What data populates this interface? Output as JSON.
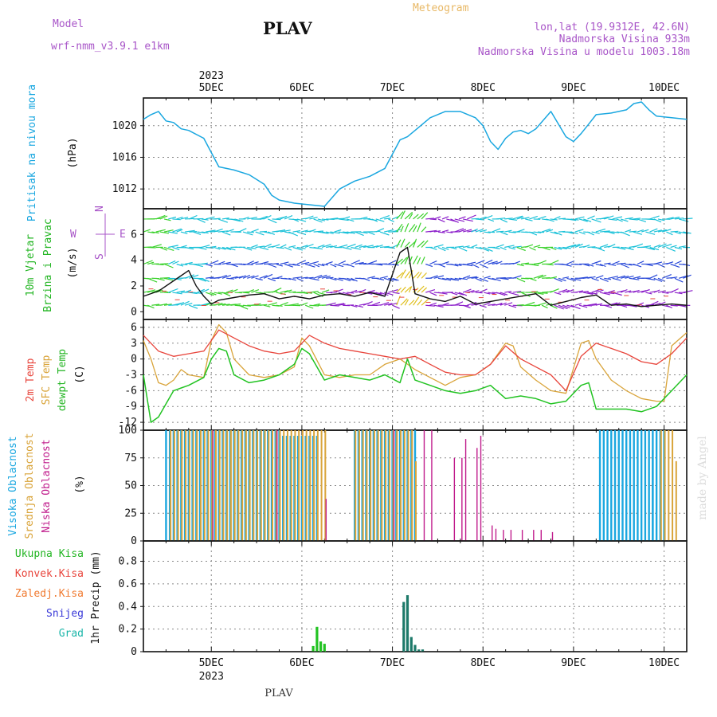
{
  "header": {
    "model_label": "Model",
    "model_name": "wrf-nmm_v3.9.1 e1km",
    "station_title": "PLAV",
    "meteogram_label": "Meteogram",
    "location": "lon,lat (19.9312E, 42.6N)",
    "altitude": "Nadmorska Visina 933m",
    "model_altitude": "Nadmorska Visina u modelu 1003.18m",
    "footer_station": "PLAV",
    "credit": "made by Angel"
  },
  "time_axis": {
    "year": "2023",
    "days": [
      "5DEC",
      "6DEC",
      "7DEC",
      "8DEC",
      "9DEC",
      "10DEC"
    ],
    "start_hour": 0,
    "end_hour": 144
  },
  "colors": {
    "pressure": "#1aa7e0",
    "temp2m": "#e8453c",
    "sfc": "#d9a43a",
    "dewpt": "#22c322",
    "high_cloud": "#1aa7e0",
    "mid_cloud": "#d9a43a",
    "low_cloud": "#c01c8c",
    "precip": "#22c322",
    "precip_dark": "#1d7a6a",
    "wind_speed": "#111111",
    "wind_purple": "#8a1cc9",
    "wind_cyan": "#19c1d8",
    "wind_green": "#39d12a",
    "wind_blue": "#2a4ad8"
  },
  "chart_data": [
    {
      "type": "line",
      "panel": "pressure",
      "ylabel_main": "Pritisak na nivou mora",
      "ylabel_unit": "(hPa)",
      "yticks": [
        1012,
        1016,
        1020
      ],
      "ylim": [
        1009.5,
        1023.5
      ],
      "series": [
        {
          "x": [
            0,
            2,
            4,
            6,
            8,
            10,
            12,
            16,
            20,
            24,
            28,
            32,
            34,
            36,
            40,
            44,
            48,
            52,
            56,
            60,
            64,
            66,
            68,
            70,
            72,
            76,
            80,
            84,
            88,
            90,
            92,
            94,
            96,
            98,
            100,
            102,
            104,
            108,
            112,
            114,
            116,
            118,
            120,
            124,
            128,
            130,
            132,
            134,
            136,
            140,
            144
          ],
          "values": [
            1020.8,
            1021.4,
            1021.8,
            1020.6,
            1020.4,
            1019.6,
            1019.4,
            1018.4,
            1014.8,
            1014.4,
            1013.8,
            1012.6,
            1011.2,
            1010.6,
            1010.2,
            1010.0,
            1009.8,
            1012.0,
            1013.0,
            1013.6,
            1014.6,
            1016.4,
            1018.2,
            1018.6,
            1019.4,
            1021.0,
            1021.8,
            1021.8,
            1021.0,
            1020.0,
            1018.0,
            1017.0,
            1018.4,
            1019.2,
            1019.4,
            1019.0,
            1019.6,
            1021.8,
            1018.6,
            1018.0,
            1019.0,
            1020.2,
            1021.4,
            1021.6,
            1022.0,
            1022.8,
            1023.0,
            1022.0,
            1021.2,
            1021.0,
            1020.8
          ]
        }
      ]
    },
    {
      "type": "line",
      "panel": "wind",
      "ylabel_main": "10m Vjetar",
      "ylabel_sub": "Brzina i Pravac",
      "ylabel_unit": "(m/s)",
      "compass": [
        "W",
        "E",
        "N",
        "S"
      ],
      "yticks": [
        0,
        2,
        4,
        6
      ],
      "ylim": [
        -0.6,
        8.0
      ],
      "series": [
        {
          "name": "wind speed",
          "x": [
            0,
            4,
            8,
            12,
            14,
            16,
            18,
            20,
            24,
            28,
            32,
            36,
            40,
            44,
            48,
            52,
            56,
            60,
            64,
            68,
            70,
            72,
            76,
            80,
            84,
            88,
            92,
            96,
            100,
            104,
            108,
            112,
            116,
            120,
            124,
            128,
            132,
            136,
            140,
            144
          ],
          "values": [
            1.2,
            1.6,
            2.4,
            3.2,
            2.0,
            1.2,
            0.6,
            0.9,
            1.1,
            1.3,
            1.4,
            1.0,
            1.2,
            1.0,
            1.3,
            1.4,
            1.2,
            1.5,
            1.2,
            4.6,
            5.0,
            1.4,
            1.0,
            0.8,
            1.2,
            0.6,
            0.8,
            1.0,
            1.2,
            1.4,
            0.5,
            0.8,
            1.1,
            1.3,
            0.5,
            0.6,
            0.4,
            0.5,
            0.6,
            0.5
          ]
        }
      ]
    },
    {
      "type": "line",
      "panel": "temperature",
      "ylabel_lines": [
        "2m Temp",
        "SFC Temp",
        "dewpt Temp"
      ],
      "ylabel_unit": "(C)",
      "yticks": [
        -12,
        -9,
        -6,
        -3,
        0,
        3,
        6
      ],
      "ylim": [
        -13.5,
        7.5
      ],
      "series": [
        {
          "name": "2m Temp",
          "x": [
            0,
            4,
            8,
            12,
            16,
            20,
            24,
            28,
            32,
            36,
            40,
            44,
            48,
            52,
            56,
            60,
            64,
            68,
            72,
            76,
            80,
            84,
            88,
            92,
            96,
            100,
            104,
            108,
            112,
            116,
            120,
            124,
            128,
            132,
            136,
            140,
            144
          ],
          "values": [
            4.5,
            1.5,
            0.5,
            1.0,
            1.5,
            5.5,
            4.0,
            2.5,
            1.5,
            1.0,
            1.5,
            4.5,
            3.0,
            2.0,
            1.5,
            1.0,
            0.5,
            0.0,
            0.5,
            -1.0,
            -2.5,
            -3.0,
            -3.0,
            -1.0,
            2.5,
            0.0,
            -1.5,
            -3.0,
            -6.0,
            0.5,
            3.0,
            2.0,
            1.0,
            -0.5,
            -1.0,
            1.0,
            4.0
          ]
        },
        {
          "name": "SFC Temp",
          "x": [
            0,
            2,
            4,
            6,
            8,
            10,
            12,
            16,
            18,
            20,
            22,
            24,
            28,
            32,
            36,
            40,
            42,
            44,
            48,
            52,
            56,
            60,
            64,
            68,
            72,
            76,
            80,
            84,
            88,
            92,
            96,
            98,
            100,
            104,
            108,
            112,
            116,
            118,
            120,
            124,
            128,
            132,
            136,
            138,
            140,
            144
          ],
          "values": [
            3.5,
            0.0,
            -4.5,
            -5.0,
            -4.0,
            -2.0,
            -3.0,
            -3.5,
            3.5,
            6.5,
            5.0,
            0.0,
            -3.0,
            -3.5,
            -3.0,
            -1.5,
            4.0,
            2.5,
            -3.0,
            -3.5,
            -3.0,
            -3.0,
            -1.0,
            0.0,
            -2.0,
            -3.5,
            -5.0,
            -3.5,
            -3.0,
            -1.0,
            3.0,
            2.5,
            -1.5,
            -4.0,
            -6.0,
            -6.5,
            3.0,
            3.5,
            0.0,
            -4.0,
            -6.0,
            -7.5,
            -8.0,
            -8.0,
            2.5,
            5.0
          ]
        },
        {
          "name": "dewpt Temp",
          "x": [
            0,
            2,
            4,
            6,
            8,
            10,
            12,
            16,
            18,
            20,
            22,
            24,
            28,
            32,
            36,
            40,
            42,
            44,
            48,
            52,
            56,
            60,
            64,
            68,
            70,
            72,
            76,
            80,
            84,
            88,
            92,
            96,
            100,
            104,
            108,
            112,
            116,
            118,
            120,
            124,
            128,
            132,
            136,
            140,
            144
          ],
          "values": [
            -3.0,
            -12.0,
            -11.0,
            -8.5,
            -6.0,
            -5.5,
            -5.0,
            -3.5,
            0.0,
            2.0,
            1.5,
            -3.0,
            -4.5,
            -4.0,
            -3.0,
            -1.0,
            2.0,
            1.0,
            -4.0,
            -3.0,
            -3.5,
            -4.0,
            -3.0,
            -4.5,
            0.0,
            -4.0,
            -5.0,
            -6.0,
            -6.5,
            -6.0,
            -5.0,
            -7.5,
            -7.0,
            -7.5,
            -8.5,
            -8.0,
            -5.0,
            -4.5,
            -9.5,
            -9.5,
            -9.5,
            -10.0,
            -9.0,
            -6.0,
            -3.0
          ]
        }
      ]
    },
    {
      "type": "bar",
      "panel": "cloud",
      "ylabel_lines": [
        "Visoka Oblacnost",
        "Srednja Oblacnost",
        "Niska Oblacnost"
      ],
      "ylabel_unit": "(%)",
      "yticks": [
        0,
        25,
        50,
        75,
        100
      ],
      "ylim": [
        0,
        100
      ],
      "series": [
        {
          "name": "Visoka Oblacnost",
          "segments": [
            [
              6,
              36,
              100
            ],
            [
              37,
              46,
              95
            ],
            [
              56,
              72,
              100
            ],
            [
              121,
              138,
              100
            ]
          ],
          "points": [
            [
              135,
              82
            ]
          ]
        },
        {
          "name": "Srednja Oblacnost",
          "segments": [
            [
              7,
              48,
              100
            ],
            [
              56,
              71,
              100
            ],
            [
              137,
              140,
              100
            ]
          ],
          "points": [
            [
              72,
              72
            ],
            [
              141,
              72
            ]
          ]
        },
        {
          "name": "Niska Oblacnost",
          "points": [
            [
              18,
              100
            ],
            [
              35,
              100
            ],
            [
              48,
              38
            ],
            [
              66,
              100
            ],
            [
              74,
              100
            ],
            [
              76,
              100
            ],
            [
              82,
              75
            ],
            [
              84,
              75
            ],
            [
              85,
              92
            ],
            [
              88,
              84
            ],
            [
              89,
              95
            ],
            [
              92,
              14
            ],
            [
              93,
              11
            ],
            [
              95,
              10
            ],
            [
              97,
              10
            ],
            [
              100,
              10
            ],
            [
              103,
              10
            ],
            [
              105,
              10
            ],
            [
              108,
              8
            ]
          ]
        }
      ]
    },
    {
      "type": "bar",
      "panel": "precip",
      "legend": [
        "Ukupna Kisa",
        "Konvek.Kisa",
        "Zaledj.Kisa",
        "Snijeg",
        "Grad"
      ],
      "ylabel_unit": "1hr Precip (mm)",
      "yticks": [
        0,
        0.2,
        0.4,
        0.6,
        0.8
      ],
      "ylim": [
        0,
        0.98
      ],
      "series": [
        {
          "name": "Ukupna Kisa",
          "x": [
            45,
            46,
            47,
            48,
            69,
            70,
            71,
            72,
            73,
            74
          ],
          "values": [
            0.05,
            0.22,
            0.09,
            0.07,
            0.44,
            0.5,
            0.13,
            0.06,
            0.02,
            0.02
          ]
        }
      ]
    }
  ]
}
